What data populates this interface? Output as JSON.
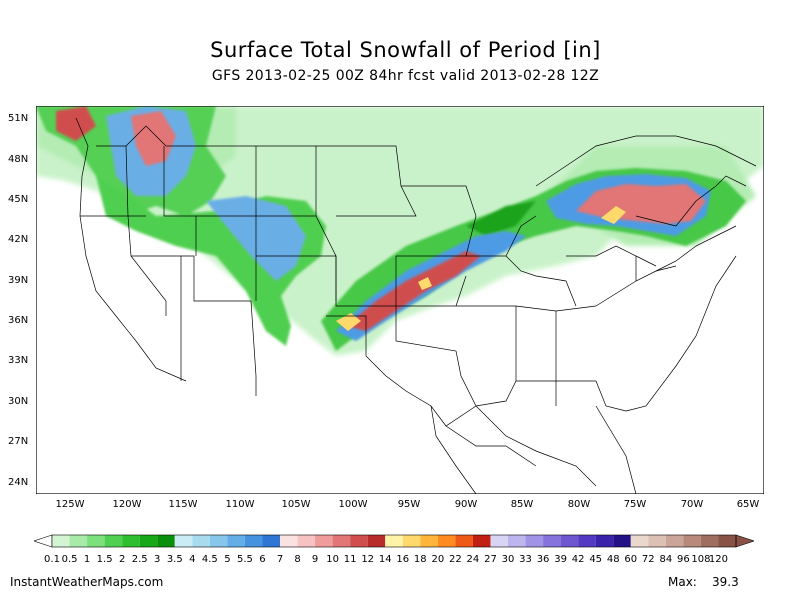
{
  "title": "Surface Total Snowfall of Period [in]",
  "subtitle": "GFS 2013-02-25 00Z 84hr fcst valid 2013-02-28 12Z",
  "lat_labels": [
    "51N",
    "48N",
    "45N",
    "42N",
    "39N",
    "36N",
    "33N",
    "30N",
    "27N",
    "24N"
  ],
  "lon_labels": [
    "125W",
    "120W",
    "115W",
    "110W",
    "105W",
    "100W",
    "95W",
    "90W",
    "85W",
    "80W",
    "75W",
    "70W",
    "65W"
  ],
  "colorbar": {
    "labels": [
      "0.1",
      "0.5",
      "1",
      "1.5",
      "2",
      "2.5",
      "3",
      "3.5",
      "4",
      "4.5",
      "5",
      "5.5",
      "6",
      "7",
      "8",
      "9",
      "10",
      "11",
      "12",
      "14",
      "16",
      "18",
      "20",
      "22",
      "24",
      "27",
      "30",
      "33",
      "36",
      "39",
      "42",
      "45",
      "48",
      "60",
      "72",
      "84",
      "96",
      "108",
      "120"
    ],
    "colors": [
      "#d4f5d4",
      "#a8eba8",
      "#7ce07c",
      "#50d050",
      "#2dbf2d",
      "#17a817",
      "#0a8f0a",
      "#c9ecf5",
      "#a9dbef",
      "#86c6ea",
      "#63aee6",
      "#4592df",
      "#2f76d4",
      "#fbe2e2",
      "#f6c2c2",
      "#ee9c9c",
      "#e27575",
      "#d04e4e",
      "#b92c2c",
      "#fff3a8",
      "#ffd96b",
      "#ffb53a",
      "#ff8a1f",
      "#ee5a16",
      "#c11e14",
      "#d8d4f4",
      "#bdb5ee",
      "#a193e5",
      "#8673db",
      "#6d56d0",
      "#5439c2",
      "#3a22aa",
      "#231287",
      "#ead8cf",
      "#dcc0b3",
      "#cba597",
      "#b78a7c",
      "#a06d61",
      "#885346"
    ]
  },
  "footer": {
    "source": "InstantWeatherMaps.com",
    "max_label": "Max:",
    "max_value": "39.3"
  }
}
